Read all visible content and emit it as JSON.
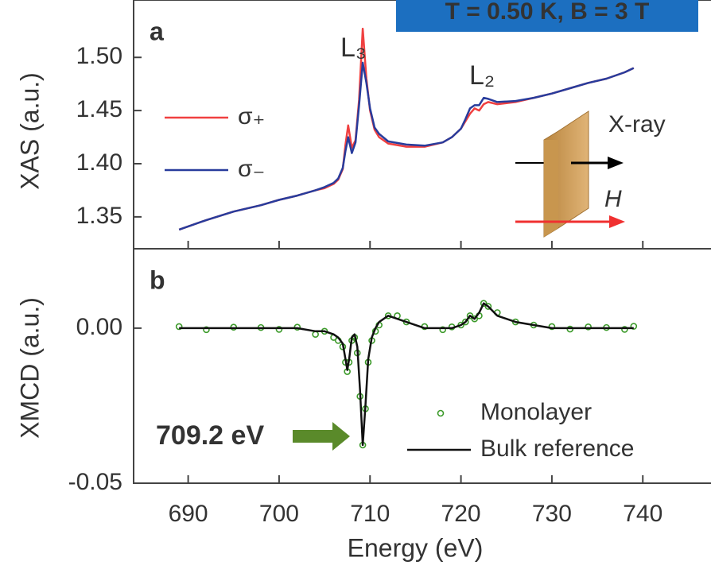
{
  "chart_data": [
    {
      "type": "line",
      "title": "T = 0.50 K, B = 3 T",
      "panel_label": "a",
      "ylabel": "XAS (a.u.)",
      "annotations": [
        "L₃",
        "L₂",
        "X-ray",
        "H"
      ],
      "x": [
        689,
        692,
        695,
        698,
        700,
        702,
        704,
        705,
        706,
        706.5,
        707,
        707.3,
        707.6,
        708,
        708.4,
        708.8,
        709.2,
        709.6,
        710,
        710.5,
        711,
        712,
        714,
        716,
        718,
        719,
        720,
        720.5,
        721,
        721.5,
        722,
        722.5,
        723,
        724,
        726,
        728,
        730,
        732,
        734,
        736,
        738,
        739
      ],
      "series": [
        {
          "name": "σ₊",
          "color": "#f04040",
          "values": [
            1.338,
            1.347,
            1.355,
            1.361,
            1.366,
            1.37,
            1.375,
            1.377,
            1.381,
            1.385,
            1.395,
            1.418,
            1.436,
            1.415,
            1.422,
            1.46,
            1.527,
            1.48,
            1.45,
            1.432,
            1.425,
            1.419,
            1.416,
            1.416,
            1.42,
            1.425,
            1.433,
            1.44,
            1.447,
            1.452,
            1.45,
            1.456,
            1.458,
            1.456,
            1.458,
            1.462,
            1.466,
            1.471,
            1.476,
            1.48,
            1.486,
            1.49
          ]
        },
        {
          "name": "σ₋",
          "color": "#283c9c",
          "values": [
            1.338,
            1.347,
            1.355,
            1.361,
            1.366,
            1.37,
            1.375,
            1.378,
            1.382,
            1.386,
            1.396,
            1.412,
            1.425,
            1.41,
            1.42,
            1.455,
            1.495,
            1.476,
            1.452,
            1.434,
            1.428,
            1.421,
            1.418,
            1.417,
            1.42,
            1.425,
            1.433,
            1.442,
            1.452,
            1.455,
            1.455,
            1.462,
            1.461,
            1.458,
            1.459,
            1.462,
            1.466,
            1.471,
            1.476,
            1.48,
            1.486,
            1.49
          ]
        }
      ],
      "xlim": [
        684,
        747.5
      ],
      "ylim": [
        1.32,
        1.554
      ],
      "yticks": [
        1.35,
        {
          "value": 1.4,
          "label": "1.40"
        },
        1.45,
        {
          "value": 1.5,
          "label": "1.50"
        }
      ]
    },
    {
      "type": "line",
      "panel_label": "b",
      "ylabel": "XMCD (a.u.)",
      "xlabel": "Energy (eV)",
      "annotations": [
        "709.2 eV"
      ],
      "x": [
        689,
        692,
        695,
        698,
        700,
        702,
        704,
        705,
        706,
        706.5,
        707,
        707.3,
        707.5,
        707.7,
        708,
        708.3,
        708.6,
        708.9,
        709.2,
        709.5,
        709.8,
        710.2,
        710.6,
        711,
        712,
        713,
        714,
        716,
        718,
        719,
        720,
        720.5,
        721,
        721.5,
        722,
        722.5,
        723,
        724,
        726,
        728,
        730,
        732,
        734,
        736,
        738,
        739
      ],
      "series": [
        {
          "name": "Monolayer",
          "color": "#3c9a2a",
          "mode": "markers",
          "values": [
            0.0005,
            -0.0005,
            0.0003,
            0.0002,
            -0.0004,
            0.0003,
            -0.002,
            -0.001,
            -0.003,
            -0.004,
            -0.006,
            -0.011,
            -0.014,
            -0.011,
            -0.004,
            -0.003,
            -0.008,
            -0.022,
            -0.0377,
            -0.026,
            -0.011,
            -0.004,
            -0.001,
            0.001,
            0.004,
            0.004,
            0.002,
            0.0005,
            -0.0005,
            0.0004,
            0.001,
            0.002,
            0.004,
            0.003,
            0.004,
            0.008,
            0.007,
            0.005,
            0.002,
            0.001,
            0.0005,
            -0.0003,
            0.0004,
            0.0002,
            -0.0004,
            0.0006
          ]
        },
        {
          "name": "Bulk reference",
          "color": "#111111",
          "mode": "lines",
          "values": [
            0,
            0,
            0,
            0,
            0,
            0,
            -0.001,
            -0.001,
            -0.002,
            -0.003,
            -0.005,
            -0.01,
            -0.0135,
            -0.01,
            -0.003,
            -0.002,
            -0.006,
            -0.02,
            -0.0377,
            -0.025,
            -0.01,
            -0.003,
            0,
            0.002,
            0.004,
            0.003,
            0.002,
            0,
            0,
            0,
            0.001,
            0.002,
            0.004,
            0.003,
            0.005,
            0.008,
            0.007,
            0.004,
            0.002,
            0.001,
            0,
            0,
            0,
            0,
            0,
            0
          ]
        }
      ],
      "xlim": [
        684,
        747.5
      ],
      "ylim": [
        -0.05,
        0.0256
      ],
      "xticks": [
        690,
        700,
        710,
        720,
        730,
        740
      ],
      "yticks": [
        -0.05,
        {
          "value": 0,
          "label": "0.00"
        }
      ]
    }
  ]
}
